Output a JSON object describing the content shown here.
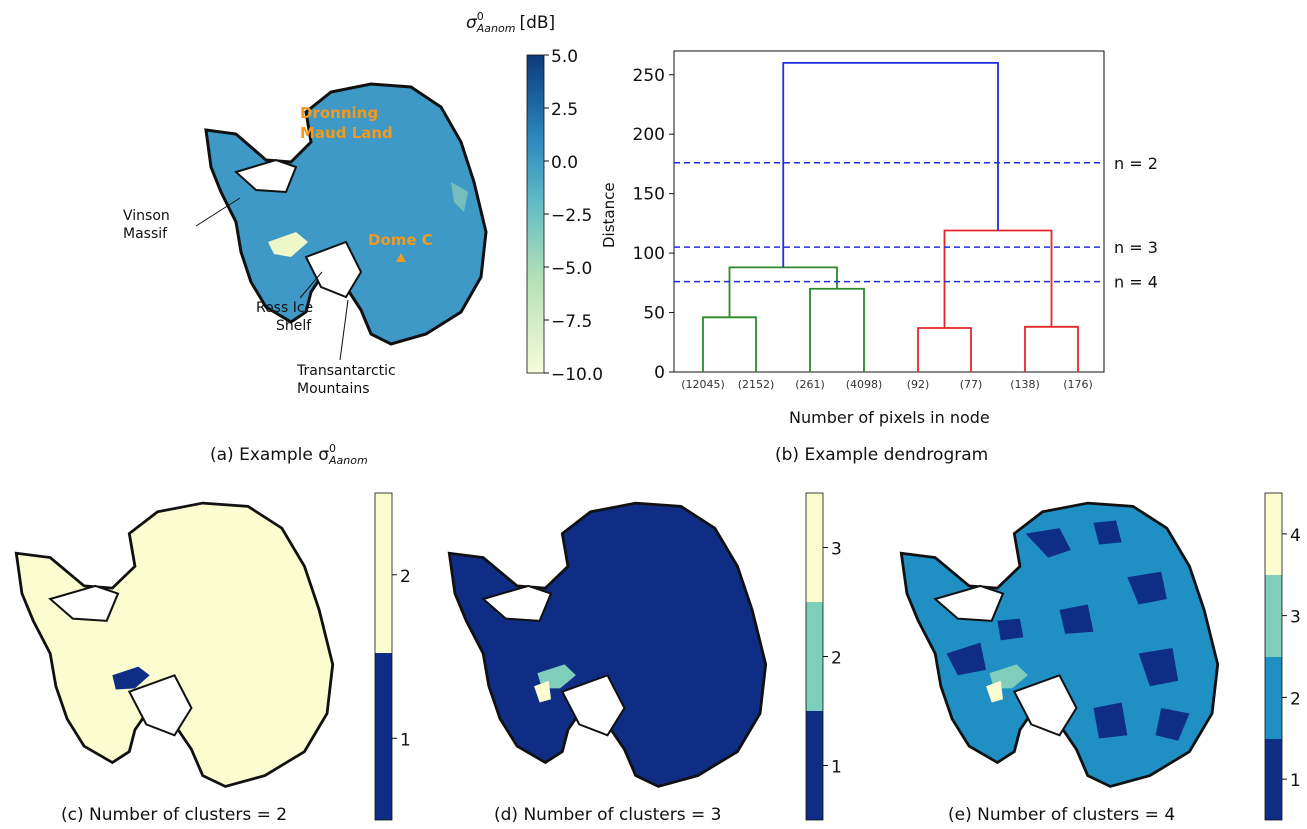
{
  "captions": {
    "a": "(a) Example σ",
    "a_sup": "0",
    "a_sub": "Aanom",
    "b": "(b) Example dendrogram",
    "c": "(c) Number of clusters = 2",
    "d": "(d) Number of clusters = 3",
    "e": "(e) Number of clusters = 4"
  },
  "map_a": {
    "colorbar_title": "σ",
    "colorbar_title_sup": "0",
    "colorbar_title_sub": "Aanom",
    "colorbar_unit": "[dB]",
    "colorbar_ticks": [
      "5.0",
      "2.5",
      "0.0",
      "−2.5",
      "−5.0",
      "−7.5",
      "−10.0"
    ],
    "colorbar_range": [
      -10,
      5
    ],
    "labels": {
      "dronning_1": "Dronning",
      "dronning_2": "Maud Land",
      "dome": "Dome C",
      "vinson_1": "Vinson",
      "vinson_2": "Massif",
      "ross_1": "Ross Ice",
      "ross_2": "Shelf",
      "trans_1": "Transantarctic",
      "trans_2": "Mountains"
    },
    "colors": {
      "land": "#3e99c7",
      "low": "#f0f8d2",
      "high": "#0d3d7c",
      "label": "#f29a1d"
    }
  },
  "chart_data": {
    "type": "dendrogram",
    "xlabel": "Number of pixels in node",
    "ylabel": "Distance",
    "ylim": [
      0,
      270
    ],
    "yticks": [
      0,
      50,
      100,
      150,
      200,
      250
    ],
    "leaves": [
      "(12045)",
      "(2152)",
      "(261)",
      "(4098)",
      "(92)",
      "(77)",
      "(138)",
      "(176)"
    ],
    "merges": [
      {
        "left": 0,
        "right": 1,
        "height": 46,
        "color": "#2a8a2a"
      },
      {
        "left": 2,
        "right": 3,
        "height": 70,
        "color": "#2a8a2a"
      },
      {
        "left": "g1",
        "right": "g2",
        "height": 88,
        "color": "#2a8a2a"
      },
      {
        "left": 4,
        "right": 5,
        "height": 37,
        "color": "#e8262a"
      },
      {
        "left": 6,
        "right": 7,
        "height": 38,
        "color": "#e8262a"
      },
      {
        "left": "r1",
        "right": "r2",
        "height": 119,
        "color": "#e8262a"
      },
      {
        "left": "G",
        "right": "R",
        "height": 260,
        "color": "#1f2ee0"
      }
    ],
    "cut_lines": [
      {
        "label": "n = 2",
        "distance": 176
      },
      {
        "label": "n = 3",
        "distance": 105
      },
      {
        "label": "n = 4",
        "distance": 76
      }
    ]
  },
  "cluster_maps": {
    "c": {
      "ticks": [
        "1",
        "2"
      ],
      "colors": [
        "#0f2d84",
        "#fbfdd0"
      ]
    },
    "d": {
      "ticks": [
        "1",
        "2",
        "3"
      ],
      "colors": [
        "#0f2d84",
        "#7fcdbb",
        "#fbfdd0"
      ]
    },
    "e": {
      "ticks": [
        "1",
        "2",
        "3",
        "4"
      ],
      "colors": [
        "#0f2d84",
        "#1f8fc4",
        "#7fcdbb",
        "#fbfdd0"
      ]
    }
  }
}
